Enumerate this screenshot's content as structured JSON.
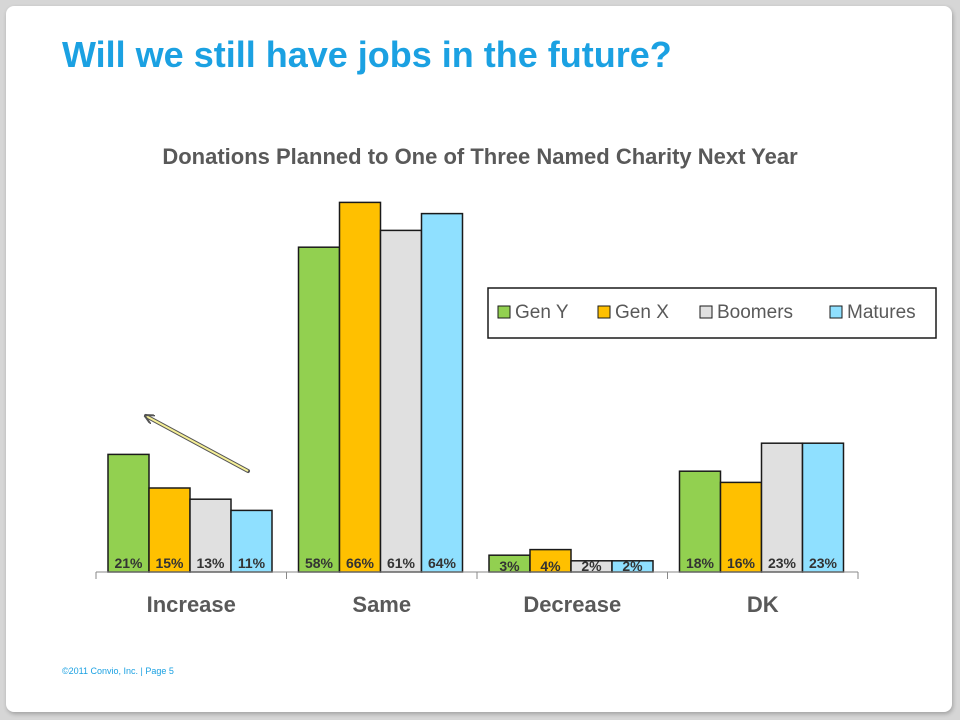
{
  "slide": {
    "title": "Will we still have jobs in the future?",
    "footer": "©2011 Convio, Inc.  |  Page  5"
  },
  "colors": {
    "title": "#1ba1e2",
    "gen_y": "#92d050",
    "gen_x": "#ffc000",
    "boomers": "#e0e0e0",
    "matures": "#8fe0ff",
    "arrow": "#f5ef96"
  },
  "chart_data": {
    "type": "bar",
    "title": "Donations Planned to One of Three Named Charity Next Year",
    "xlabel": "",
    "ylabel": "",
    "ylim": [
      0,
      70
    ],
    "grid": false,
    "legend": "top-right",
    "categories": [
      "Increase",
      "Same",
      "Decrease",
      "DK"
    ],
    "series": [
      {
        "name": "Gen Y",
        "values": [
          21,
          58,
          3,
          18
        ],
        "labels": [
          "21%",
          "58%",
          "3%",
          "18%"
        ]
      },
      {
        "name": "Gen X",
        "values": [
          15,
          66,
          4,
          16
        ],
        "labels": [
          "15%",
          "66%",
          "4%",
          "16%"
        ]
      },
      {
        "name": "Boomers",
        "values": [
          13,
          61,
          2,
          23
        ],
        "labels": [
          "13%",
          "61%",
          "2%",
          "23%"
        ]
      },
      {
        "name": "Matures",
        "values": [
          11,
          64,
          2,
          23
        ],
        "labels": [
          "11%",
          "64%",
          "2%",
          "23%"
        ]
      }
    ],
    "annotation": "arrow-pointing-up-left-near-increase"
  }
}
